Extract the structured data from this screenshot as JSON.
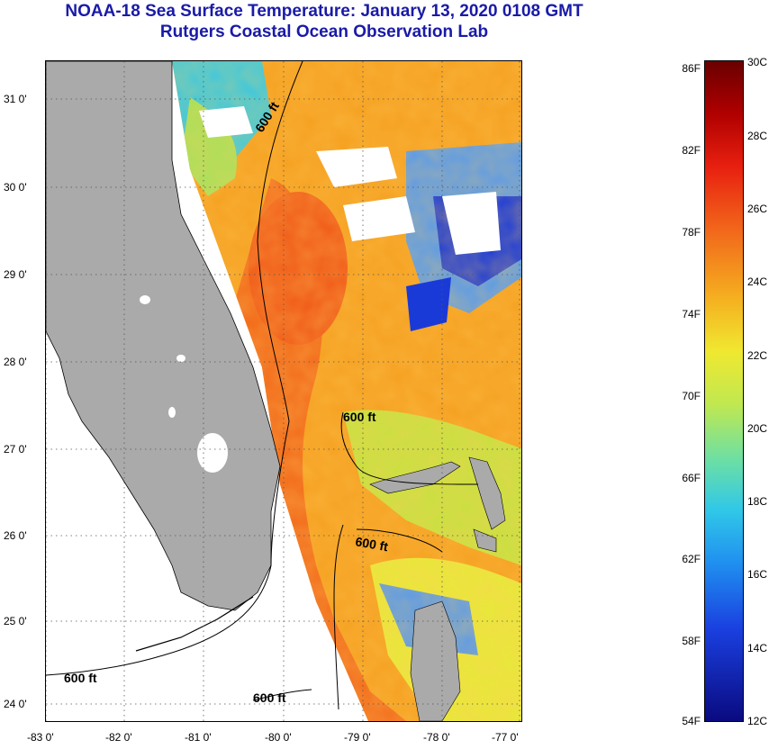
{
  "header": {
    "title": "NOAA-18 Sea Surface Temperature:  January 13, 2020 0108 GMT",
    "subtitle": "Rutgers Coastal Ocean Observation Lab"
  },
  "map": {
    "lat_labels": [
      "31 0'",
      "30 0'",
      "29 0'",
      "28 0'",
      "27 0'",
      "26 0'",
      "25 0'",
      "24 0'"
    ],
    "lon_labels": [
      "-83 0'",
      "-82 0'",
      "-81 0'",
      "-80 0'",
      "-79 0'",
      "-78 0'",
      "-77 0'"
    ],
    "contour_labels": [
      "600 ft",
      "600 ft",
      "600 ft",
      "600 ft",
      "600 ft"
    ],
    "colors": {
      "land": "#aaaaaa",
      "cloud": "#ffffff",
      "warm": "#f26a1b",
      "orange": "#f5a020",
      "yellow": "#e8e83a",
      "green": "#a8e05a",
      "cyan": "#39c8e0",
      "blue": "#1a3ad8"
    }
  },
  "colorbar": {
    "fahrenheit": [
      "86F",
      "82F",
      "78F",
      "74F",
      "70F",
      "66F",
      "62F",
      "58F",
      "54F"
    ],
    "celsius": [
      "30C",
      "28C",
      "26C",
      "24C",
      "22C",
      "20C",
      "18C",
      "16C",
      "14C",
      "12C"
    ]
  }
}
